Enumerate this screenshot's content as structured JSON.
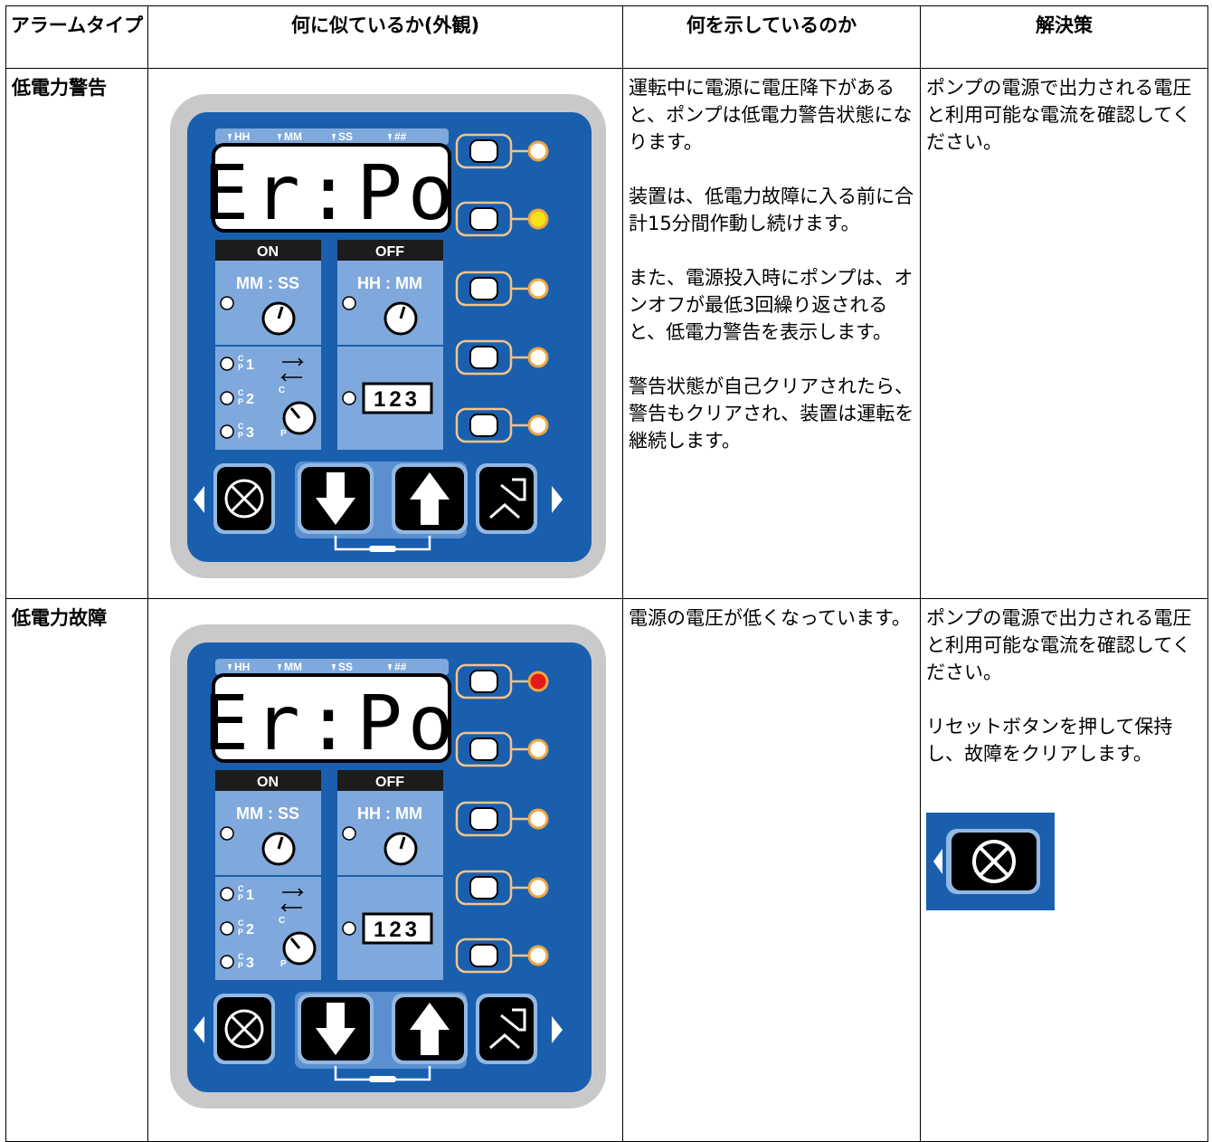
{
  "table": {
    "headers": [
      "アラームタイプ",
      "何に似ているか(外観)",
      "何を示しているのか",
      "解決策"
    ],
    "rows": [
      {
        "alarm_type": "低電力警告",
        "meaning": [
          "運転中に電源に電圧降下があると、ポンプは低電力警告状態になります。",
          "装置は、低電力故障に入る前に合計15分間作動し続けます。",
          "また、電源投入時にポンプは、オンオフが最低3回繰り返されると、低電力警告を表示します。",
          "警告状態が自己クリアされたら、警告もクリアされ、装置は運転を継続します。"
        ],
        "solution": [
          "ポンプの電源で出力される電圧と利用可能な電流を確認してください。"
        ]
      },
      {
        "alarm_type": "低電力故障",
        "meaning": [
          "電源の電圧が低くなっています。"
        ],
        "solution": [
          "ポンプの電源で出力される電圧と利用可能な電流を確認してください。",
          "リセットボタンを押して保持し、故障をクリアします。"
        ]
      }
    ]
  },
  "panel": {
    "time_labels": [
      "HH",
      "MM",
      "SS",
      "##"
    ],
    "display": "Er:Po",
    "on": "ON",
    "off": "OFF",
    "on_format": "MM : SS",
    "off_format": "HH : MM",
    "counter": "123",
    "cycle_c": "C",
    "cycle_p": "P",
    "modes": [
      "1",
      "2",
      "3"
    ]
  }
}
